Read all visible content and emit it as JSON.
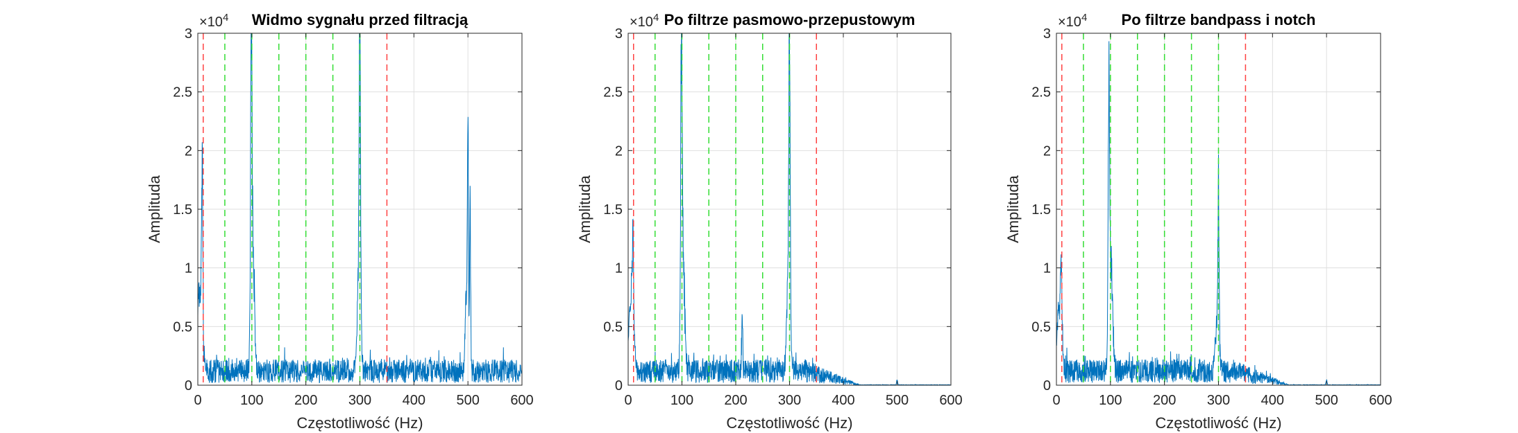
{
  "colors": {
    "signal": "#0072BD",
    "band_edge": "#FF4040",
    "harmonic": "#33DD33",
    "grid": "#DFDFDF",
    "axis": "#262626"
  },
  "chart_data": [
    {
      "type": "line",
      "title": "Widmo sygnału przed filtracją",
      "xlabel": "Częstotliwość (Hz)",
      "ylabel": "Amplituda",
      "exponent_label": "×10",
      "exponent_power": "4",
      "xlim": [
        0,
        600
      ],
      "ylim": [
        0,
        3
      ],
      "y_scale_note": "values in units of 10^4",
      "xticks": [
        "0",
        "100",
        "200",
        "300",
        "400",
        "500",
        "600"
      ],
      "yticks": [
        "0",
        "0.5",
        "1",
        "1.5",
        "2",
        "2.5",
        "3"
      ],
      "grid": true,
      "vlines_red": [
        10,
        350
      ],
      "vlines_green": [
        50,
        100,
        150,
        200,
        250,
        300
      ],
      "noise": {
        "base": 0.12,
        "amp": 0.1,
        "ramp_from": 0,
        "ramp_to": 600,
        "ramp_level": 1.0
      },
      "peaks": [
        {
          "f": 2,
          "a": 0.75,
          "w": 5
        },
        {
          "f": 8,
          "a": 1.75,
          "w": 1.2
        },
        {
          "f": 99,
          "a": 2.82,
          "w": 1.4
        },
        {
          "f": 102,
          "a": 1.15,
          "w": 3
        },
        {
          "f": 300,
          "a": 3.0,
          "w": 1.2
        },
        {
          "f": 298,
          "a": 1.0,
          "w": 3
        },
        {
          "f": 500,
          "a": 2.2,
          "w": 1.0
        },
        {
          "f": 504,
          "a": 1.65,
          "w": 1.0
        },
        {
          "f": 497,
          "a": 0.8,
          "w": 2
        }
      ]
    },
    {
      "type": "line",
      "title": "Po filtrze pasmowo-przepustowym",
      "xlabel": "Częstotliwość (Hz)",
      "ylabel": "Amplituda",
      "exponent_label": "×10",
      "exponent_power": "4",
      "xlim": [
        0,
        600
      ],
      "ylim": [
        0,
        3
      ],
      "y_scale_note": "values in units of 10^4",
      "xticks": [
        "0",
        "100",
        "200",
        "300",
        "400",
        "500",
        "600"
      ],
      "yticks": [
        "0",
        "0.5",
        "1",
        "1.5",
        "2",
        "2.5",
        "3"
      ],
      "grid": true,
      "vlines_red": [
        10,
        350
      ],
      "vlines_green": [
        50,
        100,
        150,
        200,
        250,
        300
      ],
      "noise": {
        "base": 0.12,
        "amp": 0.1,
        "ramp_from": 330,
        "ramp_to": 430,
        "ramp_level": 0.02
      },
      "peaks": [
        {
          "f": 5,
          "a": 0.7,
          "w": 4
        },
        {
          "f": 9,
          "a": 0.85,
          "w": 1.5
        },
        {
          "f": 99,
          "a": 2.85,
          "w": 1.4
        },
        {
          "f": 102,
          "a": 1.1,
          "w": 3
        },
        {
          "f": 212,
          "a": 0.52,
          "w": 1
        },
        {
          "f": 300,
          "a": 2.92,
          "w": 1.2
        },
        {
          "f": 298,
          "a": 1.0,
          "w": 3
        },
        {
          "f": 500,
          "a": 0.05,
          "w": 1
        }
      ]
    },
    {
      "type": "line",
      "title": "Po filtrze bandpass i notch",
      "xlabel": "Częstotliwość (Hz)",
      "ylabel": "Amplituda",
      "exponent_label": "×10",
      "exponent_power": "4",
      "xlim": [
        0,
        600
      ],
      "ylim": [
        0,
        3
      ],
      "y_scale_note": "values in units of 10^4",
      "xticks": [
        "0",
        "100",
        "200",
        "300",
        "400",
        "500",
        "600"
      ],
      "yticks": [
        "0",
        "0.5",
        "1",
        "1.5",
        "2",
        "2.5",
        "3"
      ],
      "grid": true,
      "vlines_red": [
        10,
        350
      ],
      "vlines_green": [
        50,
        100,
        150,
        200,
        250,
        300
      ],
      "noise": {
        "base": 0.12,
        "amp": 0.1,
        "ramp_from": 330,
        "ramp_to": 430,
        "ramp_level": 0.02
      },
      "peaks": [
        {
          "f": 5,
          "a": 0.6,
          "w": 4
        },
        {
          "f": 9,
          "a": 0.75,
          "w": 1.5
        },
        {
          "f": 97,
          "a": 2.55,
          "w": 1.3
        },
        {
          "f": 101,
          "a": 1.1,
          "w": 3
        },
        {
          "f": 300,
          "a": 1.55,
          "w": 1.2
        },
        {
          "f": 297,
          "a": 0.45,
          "w": 3
        },
        {
          "f": 500,
          "a": 0.05,
          "w": 1
        }
      ]
    }
  ]
}
